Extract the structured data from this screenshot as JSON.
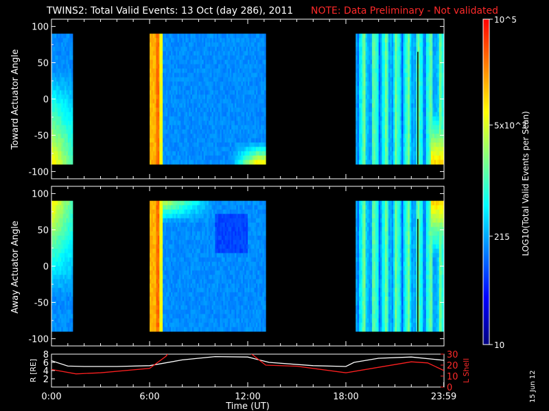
{
  "header": {
    "title": "TWINS2: Total Valid Events: 13 Oct (day 286), 2011",
    "note": "NOTE: Data Preliminary - Not validated"
  },
  "date_stamp": "15 Jun 12",
  "chart_data": [
    {
      "type": "heatmap",
      "panel": "toward",
      "ylabel": "Toward Actuator Angle",
      "ylim": [
        -110,
        110
      ],
      "yticks": [
        "100",
        "50",
        "0",
        "-50",
        "-100"
      ],
      "angle_range": [
        -90,
        90
      ],
      "data_intervals_hours": [
        [
          0.0,
          1.3
        ],
        [
          6.0,
          13.1
        ],
        [
          18.6,
          24.0
        ]
      ],
      "colorbar": {
        "label": "LOG10(Total Valid Events per Scan)",
        "min": 10,
        "max": 100000,
        "ticks": [
          "10",
          "215",
          "5x10^3",
          "10^5"
        ],
        "colors": [
          "#00007f",
          "#0000ff",
          "#0080ff",
          "#00ffff",
          "#80ff80",
          "#ffff00",
          "#ff8000",
          "#ff0000"
        ]
      }
    },
    {
      "type": "heatmap",
      "panel": "away",
      "ylabel": "Away Actuator Angle",
      "ylim": [
        -110,
        110
      ],
      "yticks": [
        "100",
        "50",
        "0",
        "-50",
        "-100"
      ],
      "angle_range": [
        -90,
        90
      ],
      "data_intervals_hours": [
        [
          0.0,
          1.3
        ],
        [
          6.0,
          13.1
        ],
        [
          18.6,
          24.0
        ]
      ]
    },
    {
      "type": "line",
      "panel": "orbit",
      "xlabel": "Time (UT)",
      "xticks": [
        "0:00",
        "6:00",
        "12:00",
        "18:00",
        "23:59"
      ],
      "ylabel_left": "R [RE]",
      "ylabel_right": "L Shell",
      "ylim_left": [
        0,
        8
      ],
      "ylim_right": [
        0,
        30
      ],
      "yticks_left": [
        "8",
        "6",
        "4",
        "2"
      ],
      "yticks_right": [
        "30",
        "20",
        "10",
        "0"
      ],
      "series": [
        {
          "name": "R [RE]",
          "color": "#ffffff",
          "x": [
            0,
            1,
            2,
            4,
            6,
            8,
            10,
            12,
            13.3,
            16,
            18,
            18.5,
            20,
            22,
            24
          ],
          "y": [
            6.4,
            5.1,
            5.0,
            5.0,
            5.2,
            6.6,
            7.4,
            7.3,
            6.0,
            5.2,
            5.0,
            6.0,
            7.0,
            7.3,
            6.5
          ]
        },
        {
          "name": "L Shell",
          "color": "#ff2020",
          "x": [
            0,
            1.5,
            3,
            6,
            7,
            7.3,
            11.9,
            13.1,
            15,
            18,
            20,
            22,
            23,
            24
          ],
          "y": [
            16,
            12,
            13,
            17,
            28,
            34,
            34,
            20,
            19,
            13,
            18,
            23,
            22,
            15
          ]
        }
      ]
    }
  ]
}
